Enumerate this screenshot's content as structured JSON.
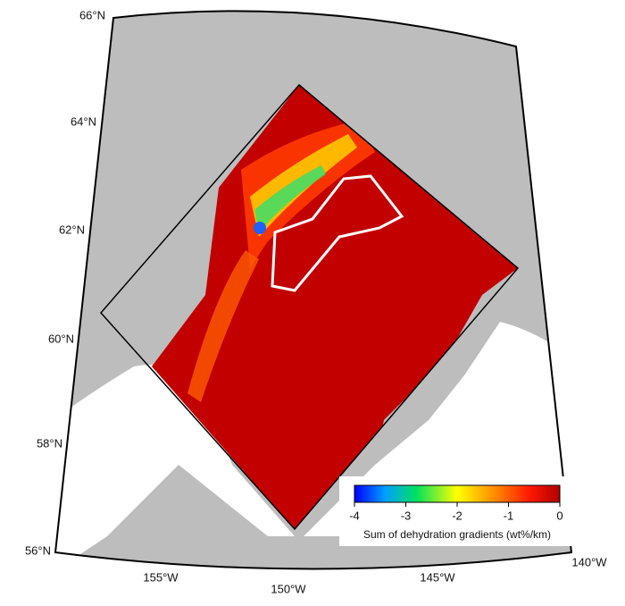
{
  "map": {
    "lat_labels": [
      "66°N",
      "64°N",
      "62°N",
      "60°N",
      "58°N",
      "56°N"
    ],
    "lon_labels": [
      "155°W",
      "150°W",
      "145°W",
      "140°W"
    ],
    "colorbar": {
      "label": "Sum of dehydration gradients (wt%/km)",
      "xlim": [
        -4,
        0
      ],
      "xticks": [
        -4,
        -3,
        -2,
        -1,
        0
      ]
    }
  }
}
